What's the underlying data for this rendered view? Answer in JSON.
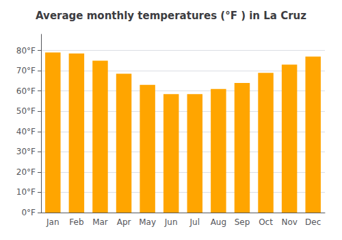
{
  "chart_data": {
    "type": "bar",
    "title": "Average monthly temperatures (°F ) in La Cruz",
    "categories": [
      "Jan",
      "Feb",
      "Mar",
      "Apr",
      "May",
      "Jun",
      "Jul",
      "Aug",
      "Sep",
      "Oct",
      "Nov",
      "Dec"
    ],
    "values": [
      79,
      78.5,
      75,
      68.5,
      63,
      58.5,
      58.5,
      61,
      64,
      69,
      73,
      77
    ],
    "color": "#FFA500",
    "ylim": [
      0,
      88
    ],
    "yticks": [
      {
        "value": 0,
        "label": "0°F"
      },
      {
        "value": 10,
        "label": "10°F"
      },
      {
        "value": 20,
        "label": "20°F"
      },
      {
        "value": 30,
        "label": "30°F"
      },
      {
        "value": 40,
        "label": "40°F"
      },
      {
        "value": 50,
        "label": "50°F"
      },
      {
        "value": 60,
        "label": "60°F"
      },
      {
        "value": 70,
        "label": "70°F"
      },
      {
        "value": 80,
        "label": "80°F"
      }
    ],
    "grid": true
  }
}
